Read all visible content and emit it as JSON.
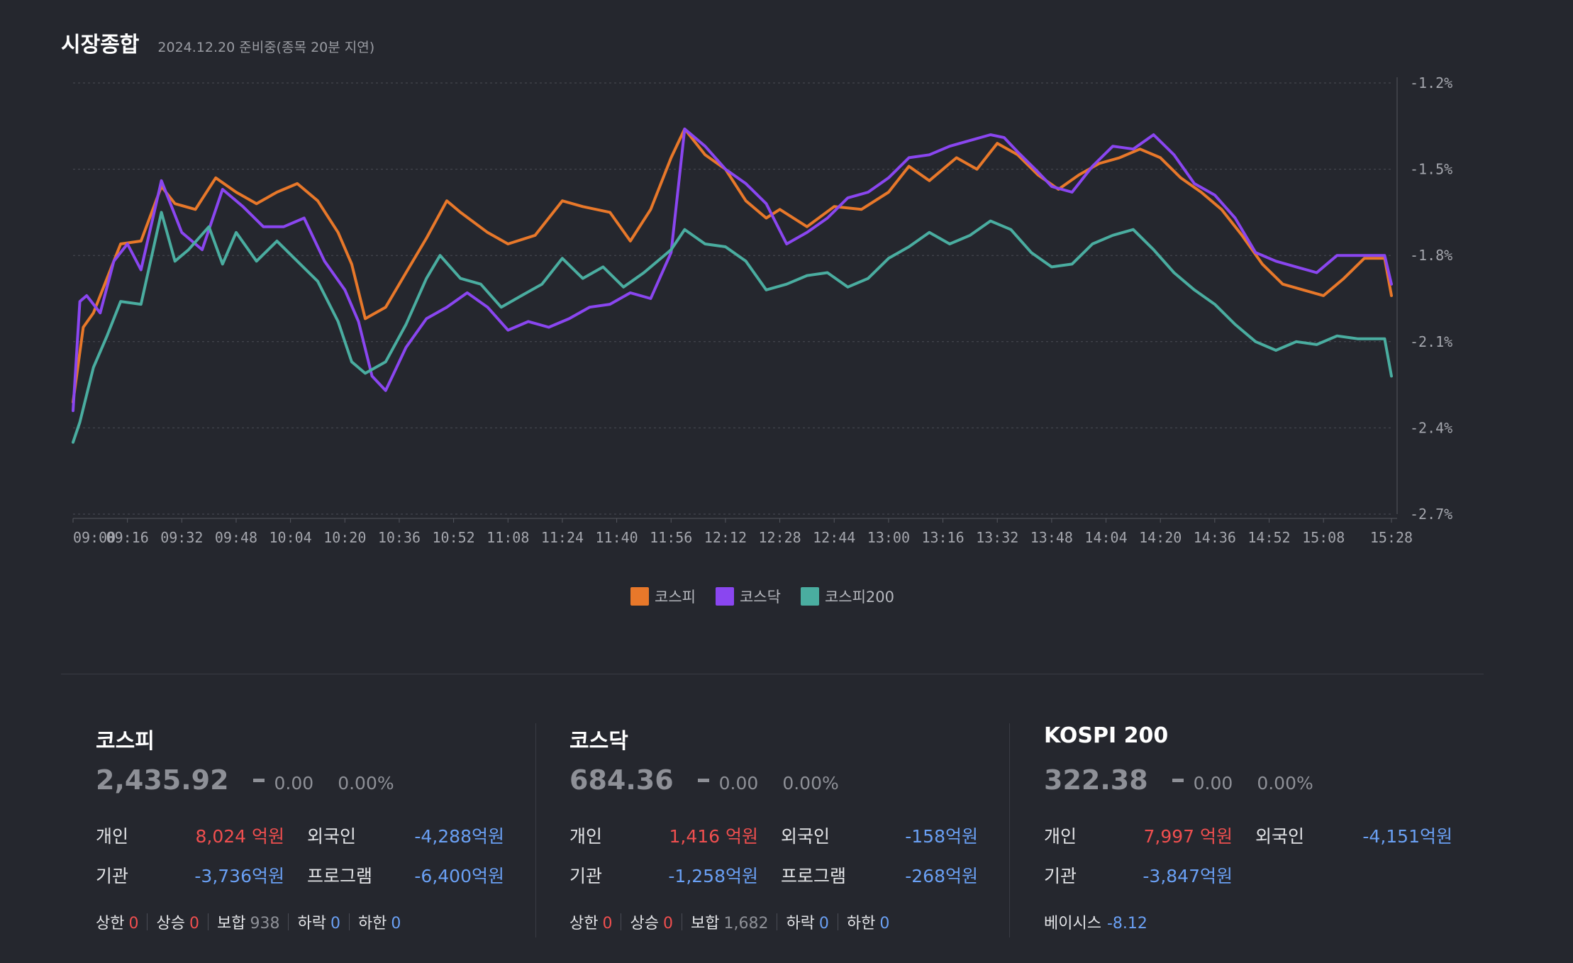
{
  "header": {
    "title": "시장종합",
    "subtitle": "2024.12.20 준비중(종목 20분 지연)"
  },
  "chart_data": {
    "type": "line",
    "x_ticks": [
      "09:00",
      "09:16",
      "09:32",
      "09:48",
      "10:04",
      "10:20",
      "10:36",
      "10:52",
      "11:08",
      "11:24",
      "11:40",
      "11:56",
      "12:12",
      "12:28",
      "12:44",
      "13:00",
      "13:16",
      "13:32",
      "13:48",
      "14:04",
      "14:20",
      "14:36",
      "14:52",
      "15:08",
      "15:28"
    ],
    "y_ticks": [
      "-1.2%",
      "-1.5%",
      "-1.8%",
      "-2.1%",
      "-2.4%",
      "-2.7%"
    ],
    "ylim": [
      -2.7,
      -1.2
    ],
    "grid": true,
    "legend_position": "bottom-center",
    "series": [
      {
        "name": "코스피",
        "color": "#e8782a",
        "x": [
          "09:00",
          "09:03",
          "09:06",
          "09:10",
          "09:14",
          "09:20",
          "09:26",
          "09:30",
          "09:36",
          "09:42",
          "09:48",
          "09:54",
          "10:00",
          "10:06",
          "10:12",
          "10:18",
          "10:22",
          "10:26",
          "10:32",
          "10:38",
          "10:44",
          "10:50",
          "10:54",
          "11:02",
          "11:08",
          "11:16",
          "11:24",
          "11:30",
          "11:38",
          "11:44",
          "11:50",
          "11:56",
          "12:00",
          "12:06",
          "12:12",
          "12:18",
          "12:24",
          "12:28",
          "12:36",
          "12:44",
          "12:52",
          "13:00",
          "13:06",
          "13:12",
          "13:20",
          "13:26",
          "13:32",
          "13:38",
          "13:44",
          "13:50",
          "13:56",
          "14:02",
          "14:08",
          "14:14",
          "14:20",
          "14:26",
          "14:32",
          "14:38",
          "14:44",
          "14:50",
          "14:56",
          "15:02",
          "15:08",
          "15:14",
          "15:20",
          "15:26",
          "15:28"
        ],
        "y": [
          -2.31,
          -2.05,
          -2.0,
          -1.88,
          -1.76,
          -1.75,
          -1.56,
          -1.62,
          -1.64,
          -1.53,
          -1.58,
          -1.62,
          -1.58,
          -1.55,
          -1.61,
          -1.72,
          -1.83,
          -2.02,
          -1.98,
          -1.86,
          -1.74,
          -1.61,
          -1.65,
          -1.72,
          -1.76,
          -1.73,
          -1.61,
          -1.63,
          -1.65,
          -1.75,
          -1.64,
          -1.46,
          -1.36,
          -1.45,
          -1.5,
          -1.61,
          -1.67,
          -1.64,
          -1.7,
          -1.63,
          -1.64,
          -1.58,
          -1.49,
          -1.54,
          -1.46,
          -1.5,
          -1.41,
          -1.45,
          -1.52,
          -1.57,
          -1.52,
          -1.48,
          -1.46,
          -1.43,
          -1.46,
          -1.53,
          -1.58,
          -1.64,
          -1.73,
          -1.83,
          -1.9,
          -1.92,
          -1.94,
          -1.88,
          -1.81,
          -1.81,
          -1.94
        ]
      },
      {
        "name": "코스닥",
        "color": "#8a46f0",
        "x": [
          "09:00",
          "09:02",
          "09:04",
          "09:08",
          "09:12",
          "09:16",
          "09:20",
          "09:26",
          "09:32",
          "09:38",
          "09:44",
          "09:50",
          "09:56",
          "10:02",
          "10:08",
          "10:14",
          "10:20",
          "10:24",
          "10:28",
          "10:32",
          "10:38",
          "10:44",
          "10:50",
          "10:56",
          "11:02",
          "11:08",
          "11:14",
          "11:20",
          "11:26",
          "11:32",
          "11:38",
          "11:44",
          "11:50",
          "11:56",
          "12:00",
          "12:06",
          "12:12",
          "12:18",
          "12:24",
          "12:30",
          "12:36",
          "12:42",
          "12:48",
          "12:54",
          "13:00",
          "13:06",
          "13:12",
          "13:18",
          "13:24",
          "13:30",
          "13:34",
          "13:38",
          "13:44",
          "13:48",
          "13:54",
          "14:00",
          "14:06",
          "14:12",
          "14:18",
          "14:24",
          "14:30",
          "14:36",
          "14:42",
          "14:48",
          "14:54",
          "15:00",
          "15:06",
          "15:12",
          "15:18",
          "15:26",
          "15:28"
        ],
        "y": [
          -2.34,
          -1.96,
          -1.94,
          -2.0,
          -1.82,
          -1.76,
          -1.85,
          -1.54,
          -1.72,
          -1.78,
          -1.57,
          -1.63,
          -1.7,
          -1.7,
          -1.67,
          -1.82,
          -1.92,
          -2.03,
          -2.22,
          -2.27,
          -2.12,
          -2.02,
          -1.98,
          -1.93,
          -1.98,
          -2.06,
          -2.03,
          -2.05,
          -2.02,
          -1.98,
          -1.97,
          -1.93,
          -1.95,
          -1.79,
          -1.36,
          -1.42,
          -1.5,
          -1.55,
          -1.62,
          -1.76,
          -1.72,
          -1.67,
          -1.6,
          -1.58,
          -1.53,
          -1.46,
          -1.45,
          -1.42,
          -1.4,
          -1.38,
          -1.39,
          -1.44,
          -1.51,
          -1.56,
          -1.58,
          -1.49,
          -1.42,
          -1.43,
          -1.38,
          -1.45,
          -1.55,
          -1.59,
          -1.67,
          -1.79,
          -1.82,
          -1.84,
          -1.86,
          -1.8,
          -1.8,
          -1.8,
          -1.9
        ]
      },
      {
        "name": "코스피200",
        "color": "#4aada0",
        "x": [
          "09:00",
          "09:02",
          "09:06",
          "09:10",
          "09:14",
          "09:20",
          "09:26",
          "09:30",
          "09:34",
          "09:40",
          "09:44",
          "09:48",
          "09:54",
          "10:00",
          "10:06",
          "10:12",
          "10:18",
          "10:22",
          "10:26",
          "10:32",
          "10:38",
          "10:44",
          "10:48",
          "10:54",
          "11:00",
          "11:06",
          "11:12",
          "11:18",
          "11:24",
          "11:30",
          "11:36",
          "11:42",
          "11:48",
          "11:56",
          "12:00",
          "12:06",
          "12:12",
          "12:18",
          "12:24",
          "12:30",
          "12:36",
          "12:42",
          "12:48",
          "12:54",
          "13:00",
          "13:06",
          "13:12",
          "13:18",
          "13:24",
          "13:30",
          "13:36",
          "13:42",
          "13:48",
          "13:54",
          "14:00",
          "14:06",
          "14:12",
          "14:18",
          "14:24",
          "14:30",
          "14:36",
          "14:42",
          "14:48",
          "14:54",
          "15:00",
          "15:06",
          "15:12",
          "15:18",
          "15:26",
          "15:28"
        ],
        "y": [
          -2.45,
          -2.38,
          -2.19,
          -2.08,
          -1.96,
          -1.97,
          -1.65,
          -1.82,
          -1.78,
          -1.7,
          -1.83,
          -1.72,
          -1.82,
          -1.75,
          -1.82,
          -1.89,
          -2.03,
          -2.17,
          -2.21,
          -2.17,
          -2.04,
          -1.88,
          -1.8,
          -1.88,
          -1.9,
          -1.98,
          -1.94,
          -1.9,
          -1.81,
          -1.88,
          -1.84,
          -1.91,
          -1.86,
          -1.78,
          -1.71,
          -1.76,
          -1.77,
          -1.82,
          -1.92,
          -1.9,
          -1.87,
          -1.86,
          -1.91,
          -1.88,
          -1.81,
          -1.77,
          -1.72,
          -1.76,
          -1.73,
          -1.68,
          -1.71,
          -1.79,
          -1.84,
          -1.83,
          -1.76,
          -1.73,
          -1.71,
          -1.78,
          -1.86,
          -1.92,
          -1.97,
          -2.04,
          -2.1,
          -2.13,
          -2.1,
          -2.11,
          -2.08,
          -2.09,
          -2.09,
          -2.22
        ]
      }
    ]
  },
  "panels": [
    {
      "name": "코스피",
      "price": "2,435.92",
      "change": "0.00",
      "percent": "0.00%",
      "flows": [
        {
          "label": "개인",
          "value": "8,024 억원",
          "color": "red"
        },
        {
          "label": "외국인",
          "value": "-4,288억원",
          "color": "blue"
        },
        {
          "label": "기관",
          "value": "-3,736억원",
          "color": "blue"
        },
        {
          "label": "프로그램",
          "value": "-6,400억원",
          "color": "blue"
        }
      ],
      "breadth": [
        {
          "label": "상한",
          "value": "0",
          "color": "red"
        },
        {
          "label": "상승",
          "value": "0",
          "color": "red"
        },
        {
          "label": "보합",
          "value": "938",
          "color": "gray"
        },
        {
          "label": "하락",
          "value": "0",
          "color": "blue"
        },
        {
          "label": "하한",
          "value": "0",
          "color": "blue"
        }
      ]
    },
    {
      "name": "코스닥",
      "price": "684.36",
      "change": "0.00",
      "percent": "0.00%",
      "flows": [
        {
          "label": "개인",
          "value": "1,416 억원",
          "color": "red"
        },
        {
          "label": "외국인",
          "value": "-158억원",
          "color": "blue"
        },
        {
          "label": "기관",
          "value": "-1,258억원",
          "color": "blue"
        },
        {
          "label": "프로그램",
          "value": "-268억원",
          "color": "blue"
        }
      ],
      "breadth": [
        {
          "label": "상한",
          "value": "0",
          "color": "red"
        },
        {
          "label": "상승",
          "value": "0",
          "color": "red"
        },
        {
          "label": "보합",
          "value": "1,682",
          "color": "gray"
        },
        {
          "label": "하락",
          "value": "0",
          "color": "blue"
        },
        {
          "label": "하한",
          "value": "0",
          "color": "blue"
        }
      ]
    },
    {
      "name": "KOSPI 200",
      "price": "322.38",
      "change": "0.00",
      "percent": "0.00%",
      "flows": [
        {
          "label": "개인",
          "value": "7,997 억원",
          "color": "red"
        },
        {
          "label": "외국인",
          "value": "-4,151억원",
          "color": "blue"
        },
        {
          "label": "기관",
          "value": "-3,847억원",
          "color": "blue"
        }
      ],
      "basis": {
        "label": "베이시스",
        "value": "-8.12"
      }
    }
  ],
  "colors": {
    "background": "#25272e",
    "up": "#f04f4f",
    "down": "#6aa0f4",
    "flat": "#8e9097"
  }
}
